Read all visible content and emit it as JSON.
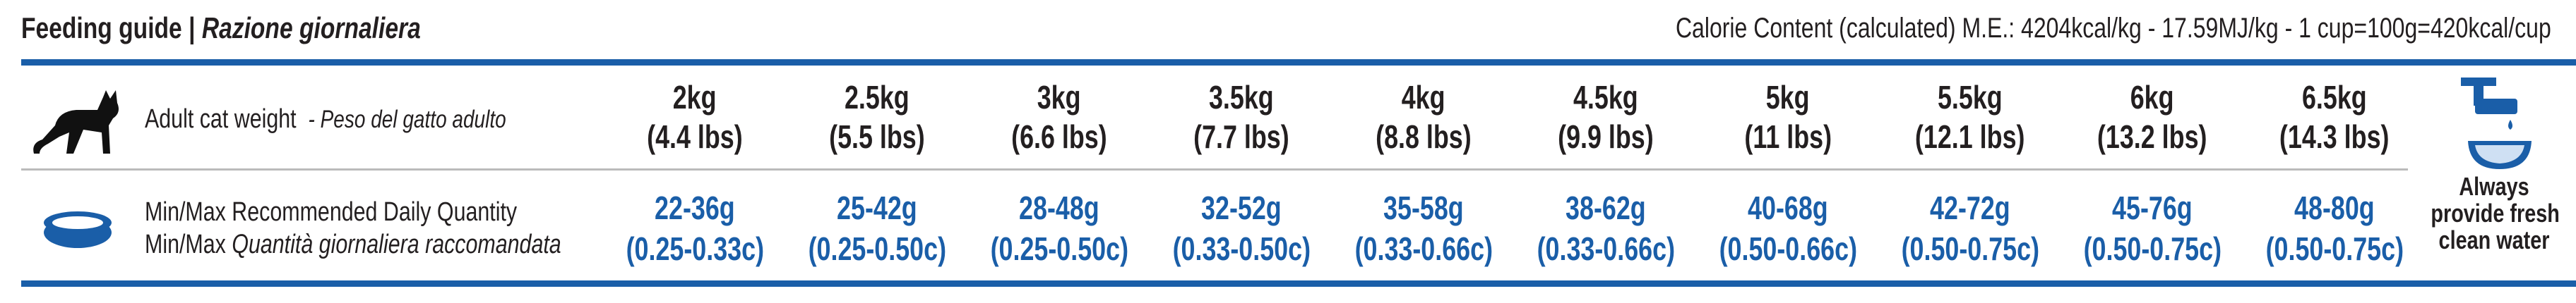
{
  "header": {
    "title": "Feeding guide",
    "separator": "|",
    "subtitle": "Razione giornaliera",
    "calories": "Calorie Content (calculated) M.E.: 4204kcal/kg - 17.59MJ/kg - 1 cup=100g=420kcal/cup"
  },
  "weight_row": {
    "label": "Adult cat weight",
    "label_it": "- Peso del gatto adulto",
    "cells": [
      {
        "kg": "2kg",
        "lbs": "(4.4 lbs)"
      },
      {
        "kg": "2.5kg",
        "lbs": "(5.5 lbs)"
      },
      {
        "kg": "3kg",
        "lbs": "(6.6 lbs)"
      },
      {
        "kg": "3.5kg",
        "lbs": "(7.7 lbs)"
      },
      {
        "kg": "4kg",
        "lbs": "(8.8 lbs)"
      },
      {
        "kg": "4.5kg",
        "lbs": "(9.9 lbs)"
      },
      {
        "kg": "5kg",
        "lbs": "(11 lbs)"
      },
      {
        "kg": "5.5kg",
        "lbs": "(12.1 lbs)"
      },
      {
        "kg": "6kg",
        "lbs": "(13.2 lbs)"
      },
      {
        "kg": "6.5kg",
        "lbs": "(14.3 lbs)"
      }
    ]
  },
  "quantity_row": {
    "label": "Min/Max Recommended Daily Quantity",
    "label_it_prefix": "Min/Max",
    "label_it": "Quantità giornaliera raccomandata",
    "cells": [
      {
        "grams": "22-36g",
        "cups": "(0.25-0.33c)"
      },
      {
        "grams": "25-42g",
        "cups": "(0.25-0.50c)"
      },
      {
        "grams": "28-48g",
        "cups": "(0.25-0.50c)"
      },
      {
        "grams": "32-52g",
        "cups": "(0.33-0.50c)"
      },
      {
        "grams": "35-58g",
        "cups": "(0.33-0.66c)"
      },
      {
        "grams": "38-62g",
        "cups": "(0.33-0.66c)"
      },
      {
        "grams": "40-68g",
        "cups": "(0.50-0.66c)"
      },
      {
        "grams": "42-72g",
        "cups": "(0.50-0.75c)"
      },
      {
        "grams": "45-76g",
        "cups": "(0.50-0.75c)"
      },
      {
        "grams": "48-80g",
        "cups": "(0.50-0.75c)"
      }
    ]
  },
  "water": {
    "lines": [
      "Always",
      "provide fresh",
      "clean water"
    ]
  }
}
